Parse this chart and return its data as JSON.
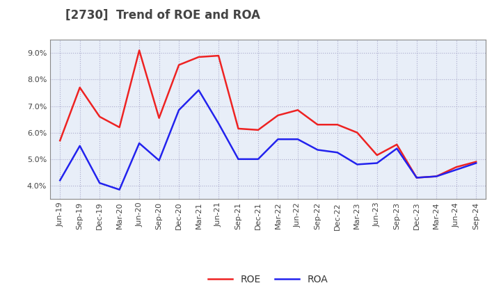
{
  "title": "[2730]  Trend of ROE and ROA",
  "x_labels": [
    "Jun-19",
    "Sep-19",
    "Dec-19",
    "Mar-20",
    "Jun-20",
    "Sep-20",
    "Dec-20",
    "Mar-21",
    "Jun-21",
    "Sep-21",
    "Dec-21",
    "Mar-22",
    "Jun-22",
    "Sep-22",
    "Dec-22",
    "Mar-23",
    "Jun-23",
    "Sep-23",
    "Dec-23",
    "Mar-24",
    "Jun-24",
    "Sep-24"
  ],
  "roe": [
    5.7,
    7.7,
    6.6,
    6.2,
    9.1,
    6.55,
    8.55,
    8.85,
    8.9,
    6.15,
    6.1,
    6.65,
    6.85,
    6.3,
    6.3,
    6.0,
    5.15,
    5.55,
    4.3,
    4.35,
    4.7,
    4.9
  ],
  "roa": [
    4.2,
    5.5,
    4.1,
    3.85,
    5.6,
    4.95,
    6.85,
    7.6,
    6.35,
    5.0,
    5.0,
    5.75,
    5.75,
    5.35,
    5.25,
    4.8,
    4.85,
    5.4,
    4.3,
    4.35,
    4.6,
    4.85
  ],
  "roe_color": "#ee2222",
  "roa_color": "#2222ee",
  "ylim": [
    3.5,
    9.5
  ],
  "yticks": [
    4.0,
    5.0,
    6.0,
    7.0,
    8.0,
    9.0
  ],
  "background_color": "#ffffff",
  "plot_bg_color": "#e8eef8",
  "grid_color": "#aaaacc",
  "title_fontsize": 12,
  "legend_fontsize": 10,
  "tick_fontsize": 8,
  "title_color": "#444444"
}
